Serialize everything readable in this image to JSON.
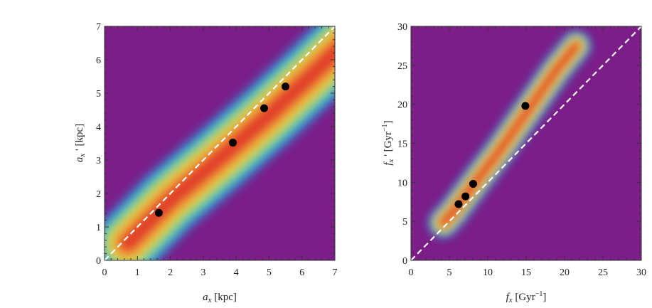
{
  "colors": {
    "background": "#7b1e88",
    "density_scale": [
      "#7b1e88",
      "#3b5fd0",
      "#2aa8e6",
      "#27c4b5",
      "#5fcf6e",
      "#b9d84a",
      "#f3d43a",
      "#f4a83a",
      "#ee6a33",
      "#e03d2a"
    ],
    "line": "#ffffff",
    "marker": "#000000"
  },
  "chart_data": [
    {
      "type": "scatter",
      "subtype": "density-contour",
      "xlabel_base": "a",
      "xlabel_sub": "x",
      "xlabel_unit": " [kpc]",
      "ylabel_base": "a",
      "ylabel_sub": "x",
      "ylabel_prime": " '",
      "ylabel_unit": " [kpc]",
      "xlim": [
        0,
        7
      ],
      "ylim": [
        0,
        7
      ],
      "xticks": [
        0,
        1,
        2,
        3,
        4,
        5,
        6,
        7
      ],
      "yticks": [
        0,
        1,
        2,
        3,
        4,
        5,
        6,
        7
      ],
      "reference_line": {
        "style": "dashed",
        "color": "white",
        "from": [
          0,
          0
        ],
        "to": [
          7,
          7
        ]
      },
      "points": [
        {
          "x": 1.65,
          "y": 1.42
        },
        {
          "x": 3.9,
          "y": 3.52
        },
        {
          "x": 4.85,
          "y": 4.55
        },
        {
          "x": 5.5,
          "y": 5.2
        }
      ],
      "density": {
        "ridge": [
          [
            0.7,
            0.5
          ],
          [
            2,
            1.8
          ],
          [
            3.5,
            3.05
          ],
          [
            5,
            4.35
          ],
          [
            6.3,
            5.55
          ],
          [
            7.3,
            6.5
          ]
        ],
        "width": 1.15
      }
    },
    {
      "type": "scatter",
      "subtype": "density-contour",
      "xlabel_base": "f",
      "xlabel_sub": "x",
      "xlabel_unit": " [Gyr",
      "xlabel_sup": "−1",
      "xlabel_close": "]",
      "ylabel_base": "f",
      "ylabel_sub": "x",
      "ylabel_prime": " '",
      "ylabel_unit": " [Gyr",
      "ylabel_sup": "−1",
      "ylabel_close": "]",
      "xlim": [
        0,
        30
      ],
      "ylim": [
        0,
        30
      ],
      "xticks": [
        0,
        5,
        10,
        15,
        20,
        25,
        30
      ],
      "yticks": [
        0,
        5,
        10,
        15,
        20,
        25,
        30
      ],
      "reference_line": {
        "style": "dashed",
        "color": "white",
        "from": [
          0,
          0
        ],
        "to": [
          30,
          30
        ]
      },
      "points": [
        {
          "x": 6.2,
          "y": 7.2
        },
        {
          "x": 7.1,
          "y": 8.2
        },
        {
          "x": 8.1,
          "y": 9.8
        },
        {
          "x": 14.9,
          "y": 19.8
        }
      ],
      "density": {
        "ridge": [
          [
            4.2,
            4.8
          ],
          [
            5.5,
            6.2
          ],
          [
            7,
            8.2
          ],
          [
            9,
            10.8
          ],
          [
            11.5,
            14
          ],
          [
            14,
            17.5
          ],
          [
            16.5,
            21
          ],
          [
            19,
            24.5
          ],
          [
            21.5,
            27.5
          ]
        ],
        "width": 2.2
      }
    }
  ]
}
